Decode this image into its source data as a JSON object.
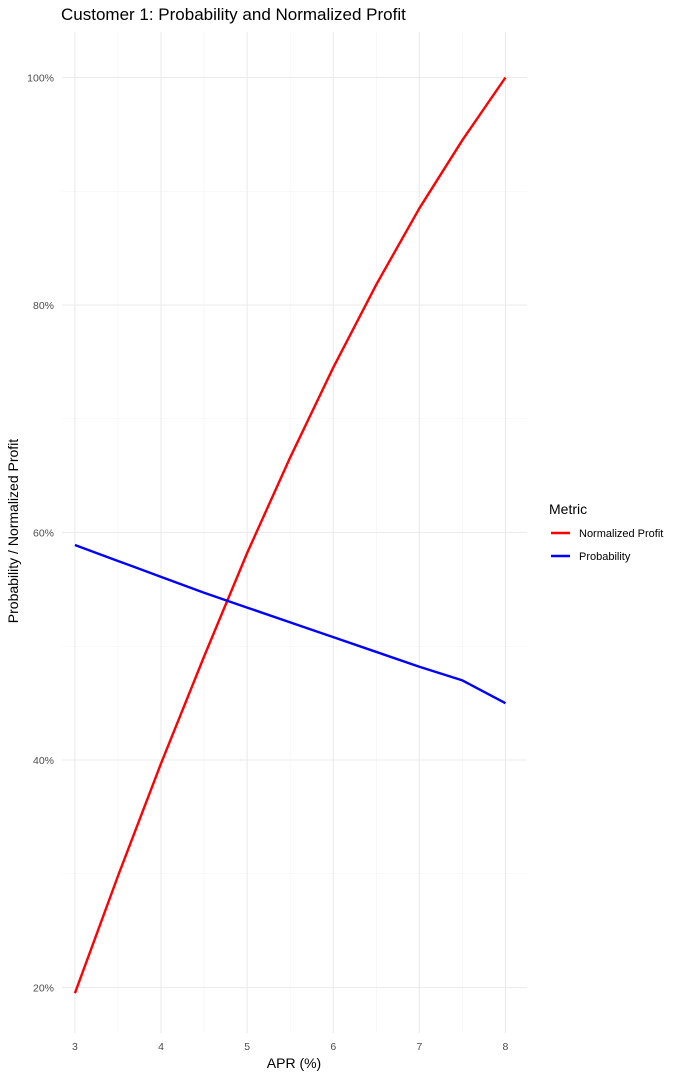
{
  "chart_data": {
    "type": "line",
    "title": "Customer 1: Probability and Normalized Profit",
    "xlabel": "APR (%)",
    "ylabel": "Probability / Normalized Profit",
    "xlim": [
      2.85,
      8.25
    ],
    "ylim": [
      0.16,
      1.04
    ],
    "x_ticks": [
      3,
      4,
      5,
      6,
      7,
      8
    ],
    "x_tick_labels": [
      "3",
      "4",
      "5",
      "6",
      "7",
      "8"
    ],
    "y_ticks": [
      0.2,
      0.4,
      0.6,
      0.8,
      1.0
    ],
    "y_tick_labels": [
      "20%",
      "40%",
      "60%",
      "80%",
      "100%"
    ],
    "grid": true,
    "legend": {
      "title": "Metric",
      "position": "right"
    },
    "x": [
      3,
      3.5,
      4,
      4.5,
      5,
      5.5,
      6,
      6.5,
      7,
      7.5,
      8
    ],
    "series": [
      {
        "name": "Normalized Profit",
        "color": "#ff0000",
        "values": [
          0.195,
          0.298,
          0.397,
          0.491,
          0.582,
          0.666,
          0.745,
          0.818,
          0.885,
          0.945,
          1.0
        ]
      },
      {
        "name": "Probability",
        "color": "#0000ff",
        "values": [
          0.589,
          0.575,
          0.561,
          0.547,
          0.534,
          0.521,
          0.508,
          0.495,
          0.482,
          0.47,
          0.45
        ]
      }
    ]
  }
}
